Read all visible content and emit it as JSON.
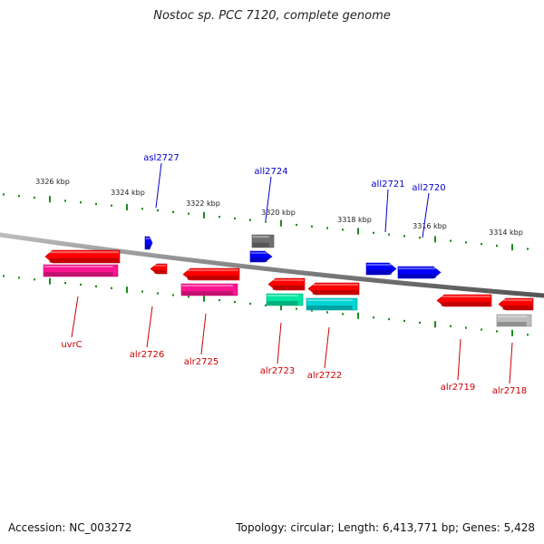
{
  "title": "Nostoc sp. PCC 7120, complete genome",
  "footer": {
    "accession": "Accession: NC_003272",
    "summary": "Topology: circular; Length: 6,413,771 bp; Genes: 5,428"
  },
  "scale_labels": [
    {
      "text": "3326 kbp"
    },
    {
      "text": "3324 kbp"
    },
    {
      "text": "3322 kbp"
    },
    {
      "text": "3320 kbp"
    },
    {
      "text": "3318 kbp"
    },
    {
      "text": "3316 kbp"
    },
    {
      "text": "3314 kbp"
    }
  ],
  "genes": [
    {
      "name": "uvrC",
      "strand": "minus",
      "color": "#ff0000"
    },
    {
      "name": "uvrC-product",
      "strand": "minus",
      "color": "#ff1493"
    },
    {
      "name": "alr2726",
      "strand": "minus",
      "color": "#ff0000"
    },
    {
      "name": "alr2725",
      "strand": "minus",
      "color": "#ff0000"
    },
    {
      "name": "alr2725-product",
      "strand": "minus",
      "color": "#ff1493"
    },
    {
      "name": "alr2723",
      "strand": "minus",
      "color": "#ff0000"
    },
    {
      "name": "alr2723-product",
      "strand": "minus",
      "color": "#00e6a0"
    },
    {
      "name": "alr2722",
      "strand": "minus",
      "color": "#ff0000"
    },
    {
      "name": "alr2722-product",
      "strand": "minus",
      "color": "#00d5d5"
    },
    {
      "name": "alr2719",
      "strand": "minus",
      "color": "#ff0000"
    },
    {
      "name": "alr2718",
      "strand": "minus",
      "color": "#ff0000"
    },
    {
      "name": "alr2718-product",
      "strand": "minus",
      "color": "#bdbdbd"
    },
    {
      "name": "asl2727",
      "strand": "plus",
      "color": "#0000ff"
    },
    {
      "name": "all2724",
      "strand": "plus",
      "color": "#0000ff"
    },
    {
      "name": "all2724-product",
      "strand": "plus",
      "color": "#707070"
    },
    {
      "name": "all2721",
      "strand": "plus",
      "color": "#0000ff"
    },
    {
      "name": "all2720",
      "strand": "plus",
      "color": "#0000ff"
    }
  ],
  "labels": [
    {
      "text": "asl2727",
      "color": "#0000cc"
    },
    {
      "text": "all2724",
      "color": "#0000cc"
    },
    {
      "text": "all2721",
      "color": "#0000cc"
    },
    {
      "text": "all2720",
      "color": "#0000cc"
    },
    {
      "text": "uvrC",
      "color": "#cc0000"
    },
    {
      "text": "alr2726",
      "color": "#cc0000"
    },
    {
      "text": "alr2725",
      "color": "#cc0000"
    },
    {
      "text": "alr2723",
      "color": "#cc0000"
    },
    {
      "text": "alr2722",
      "color": "#cc0000"
    },
    {
      "text": "alr2719",
      "color": "#cc0000"
    },
    {
      "text": "alr2718",
      "color": "#cc0000"
    }
  ],
  "colors": {
    "backbone": "#888888",
    "tick": "#1a8a1a"
  }
}
